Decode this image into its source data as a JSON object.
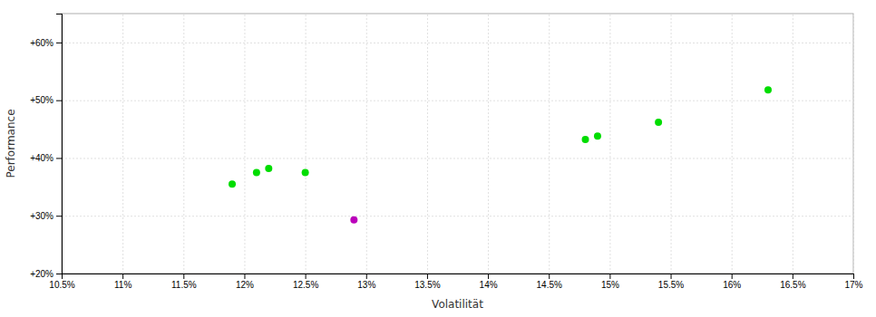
{
  "chart_data": {
    "type": "scatter",
    "xlabel": "Volatilität",
    "ylabel": "Performance",
    "xlim": [
      0.105,
      0.17
    ],
    "ylim": [
      0.2,
      0.65
    ],
    "xticks": [
      {
        "value": 0.105,
        "label": "10.5%"
      },
      {
        "value": 0.11,
        "label": "11%"
      },
      {
        "value": 0.115,
        "label": "11.5%"
      },
      {
        "value": 0.12,
        "label": "12%"
      },
      {
        "value": 0.125,
        "label": "12.5%"
      },
      {
        "value": 0.13,
        "label": "13%"
      },
      {
        "value": 0.135,
        "label": "13.5%"
      },
      {
        "value": 0.14,
        "label": "14%"
      },
      {
        "value": 0.145,
        "label": "14.5%"
      },
      {
        "value": 0.15,
        "label": "15%"
      },
      {
        "value": 0.155,
        "label": "15.5%"
      },
      {
        "value": 0.16,
        "label": "16%"
      },
      {
        "value": 0.165,
        "label": "16.5%"
      },
      {
        "value": 0.17,
        "label": "17%"
      }
    ],
    "yticks": [
      {
        "value": 0.2,
        "label": "+20%"
      },
      {
        "value": 0.3,
        "label": "+30%"
      },
      {
        "value": 0.4,
        "label": "+40%"
      },
      {
        "value": 0.5,
        "label": "+50%"
      },
      {
        "value": 0.6,
        "label": "+60%"
      }
    ],
    "grid": true,
    "series": [
      {
        "color": "#00dd00",
        "x": [
          0.119,
          0.121,
          0.122,
          0.125,
          0.148,
          0.149,
          0.154,
          0.163
        ],
        "values": [
          0.355,
          0.375,
          0.382,
          0.375,
          0.432,
          0.438,
          0.462,
          0.518
        ]
      },
      {
        "color": "#bb00bb",
        "x": [
          0.129
        ],
        "values": [
          0.293
        ]
      }
    ]
  }
}
